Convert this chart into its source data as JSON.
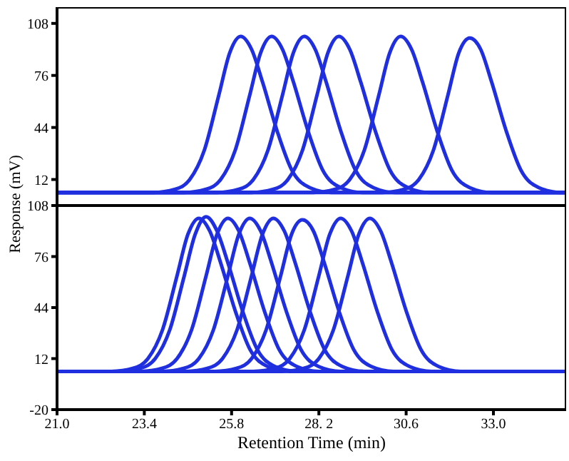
{
  "chart_data": [
    {
      "type": "line",
      "ylabel": "Response (mV)",
      "xlim": [
        21,
        35
      ],
      "ylim": [
        -4,
        118
      ],
      "yticks": [
        12,
        44,
        76,
        108
      ],
      "tick_labels": "y",
      "line_style": "solid",
      "series": [
        {
          "color": "#1f2fe0",
          "x": [
            21,
            23.65,
            24.25,
            24.65,
            25.05,
            25.45,
            25.75,
            26.05,
            26.35,
            26.65,
            27.05,
            27.45,
            27.95,
            28.55,
            35
          ],
          "values": [
            4,
            4,
            6,
            12,
            30,
            64,
            90,
            100,
            92,
            72,
            42,
            18,
            7,
            4,
            4
          ]
        },
        {
          "color": "#1f2fe0",
          "x": [
            21,
            24.5,
            25.1,
            25.5,
            25.9,
            26.3,
            26.6,
            26.9,
            27.2,
            27.5,
            27.9,
            28.3,
            28.8,
            29.4,
            35
          ],
          "values": [
            4,
            4,
            6,
            12,
            30,
            64,
            90,
            100,
            92,
            72,
            42,
            18,
            7,
            4,
            4
          ]
        },
        {
          "color": "#1f2fe0",
          "x": [
            21,
            25.4,
            26.0,
            26.4,
            26.8,
            27.2,
            27.5,
            27.8,
            28.1,
            28.4,
            28.8,
            29.2,
            29.7,
            30.3,
            35
          ],
          "values": [
            4,
            4,
            6,
            12,
            30,
            64,
            90,
            100,
            92,
            72,
            42,
            18,
            7,
            4,
            4
          ]
        },
        {
          "color": "#1f2fe0",
          "x": [
            21,
            26.35,
            26.95,
            27.35,
            27.75,
            28.15,
            28.45,
            28.75,
            29.05,
            29.35,
            29.75,
            30.15,
            30.65,
            31.25,
            35
          ],
          "values": [
            4,
            4,
            6,
            12,
            30,
            64,
            90,
            100,
            92,
            72,
            42,
            18,
            7,
            4,
            4
          ]
        },
        {
          "color": "#1f2fe0",
          "x": [
            21,
            28.05,
            28.65,
            29.05,
            29.45,
            29.85,
            30.15,
            30.45,
            30.75,
            31.05,
            31.45,
            31.85,
            32.35,
            32.95,
            35
          ],
          "values": [
            4,
            4,
            6,
            12,
            30,
            64,
            90,
            100,
            92,
            72,
            42,
            18,
            7,
            4,
            4
          ]
        },
        {
          "color": "#1f2fe0",
          "x": [
            21,
            29.95,
            30.55,
            30.95,
            31.35,
            31.75,
            32.05,
            32.35,
            32.65,
            32.95,
            33.35,
            33.75,
            34.25,
            34.85,
            35
          ],
          "values": [
            4,
            4,
            6,
            12,
            30,
            64,
            90,
            99,
            92,
            72,
            42,
            18,
            7,
            4,
            4
          ]
        }
      ]
    },
    {
      "type": "line",
      "xlabel": "Retention Time (min)",
      "xlim": [
        21,
        35
      ],
      "xticks": [
        {
          "value": 21,
          "label": "21.0"
        },
        23.4,
        25.8,
        {
          "value": 28.2,
          "label": "28. 2"
        },
        30.6,
        {
          "value": 33,
          "label": "33.0"
        }
      ],
      "ylim": [
        -20,
        108
      ],
      "yticks": [
        -20,
        12,
        44,
        76,
        108
      ],
      "line_style": "solid",
      "series": [
        {
          "color": "#1f2fe0",
          "x": [
            21,
            22.5,
            23.1,
            23.5,
            23.9,
            24.3,
            24.6,
            24.9,
            25.2,
            25.5,
            25.9,
            26.3,
            26.8,
            27.4,
            35
          ],
          "values": [
            4,
            4,
            6,
            12,
            30,
            64,
            90,
            100,
            92,
            72,
            42,
            18,
            7,
            4,
            4
          ]
        },
        {
          "color": "#1f2fe0",
          "x": [
            21,
            22.7,
            23.3,
            23.7,
            24.1,
            24.5,
            24.8,
            25.1,
            25.4,
            25.7,
            26.1,
            26.5,
            27.0,
            27.6,
            35
          ],
          "values": [
            4,
            4,
            6,
            12,
            30,
            64,
            90,
            101,
            92,
            72,
            42,
            18,
            7,
            4,
            4
          ]
        },
        {
          "color": "#1f2fe0",
          "x": [
            21,
            23.3,
            23.9,
            24.3,
            24.7,
            25.1,
            25.4,
            25.7,
            26.0,
            26.3,
            26.7,
            27.1,
            27.6,
            28.2,
            35
          ],
          "values": [
            4,
            4,
            6,
            12,
            30,
            64,
            90,
            100,
            92,
            72,
            42,
            18,
            7,
            4,
            4
          ]
        },
        {
          "color": "#1f2fe0",
          "x": [
            21,
            23.9,
            24.5,
            24.9,
            25.3,
            25.7,
            26.0,
            26.3,
            26.6,
            26.9,
            27.3,
            27.7,
            28.2,
            28.8,
            35
          ],
          "values": [
            4,
            4,
            6,
            12,
            30,
            64,
            90,
            100,
            92,
            72,
            42,
            18,
            7,
            4,
            4
          ]
        },
        {
          "color": "#1f2fe0",
          "x": [
            21,
            24.55,
            25.15,
            25.55,
            25.95,
            26.35,
            26.65,
            26.95,
            27.25,
            27.55,
            27.95,
            28.35,
            28.85,
            29.45,
            35
          ],
          "values": [
            4,
            4,
            6,
            12,
            30,
            64,
            90,
            100,
            92,
            72,
            42,
            18,
            7,
            4,
            4
          ]
        },
        {
          "color": "#1f2fe0",
          "x": [
            21,
            25.35,
            25.95,
            26.35,
            26.75,
            27.15,
            27.45,
            27.75,
            28.05,
            28.35,
            28.75,
            29.15,
            29.65,
            30.25,
            35
          ],
          "values": [
            4,
            4,
            6,
            12,
            30,
            64,
            90,
            99,
            92,
            72,
            42,
            18,
            7,
            4,
            4
          ]
        },
        {
          "color": "#1f2fe0",
          "x": [
            21,
            26.4,
            27.0,
            27.4,
            27.8,
            28.2,
            28.5,
            28.8,
            29.1,
            29.4,
            29.8,
            30.2,
            30.7,
            31.3,
            35
          ],
          "values": [
            4,
            4,
            6,
            12,
            30,
            64,
            90,
            100,
            92,
            72,
            42,
            18,
            7,
            4,
            4
          ]
        },
        {
          "color": "#1f2fe0",
          "x": [
            21,
            27.2,
            27.8,
            28.2,
            28.6,
            29.0,
            29.3,
            29.6,
            29.9,
            30.2,
            30.6,
            31.0,
            31.5,
            32.1,
            35
          ],
          "values": [
            4,
            4,
            6,
            12,
            30,
            64,
            90,
            100,
            92,
            72,
            42,
            18,
            7,
            4,
            4
          ]
        }
      ]
    }
  ]
}
